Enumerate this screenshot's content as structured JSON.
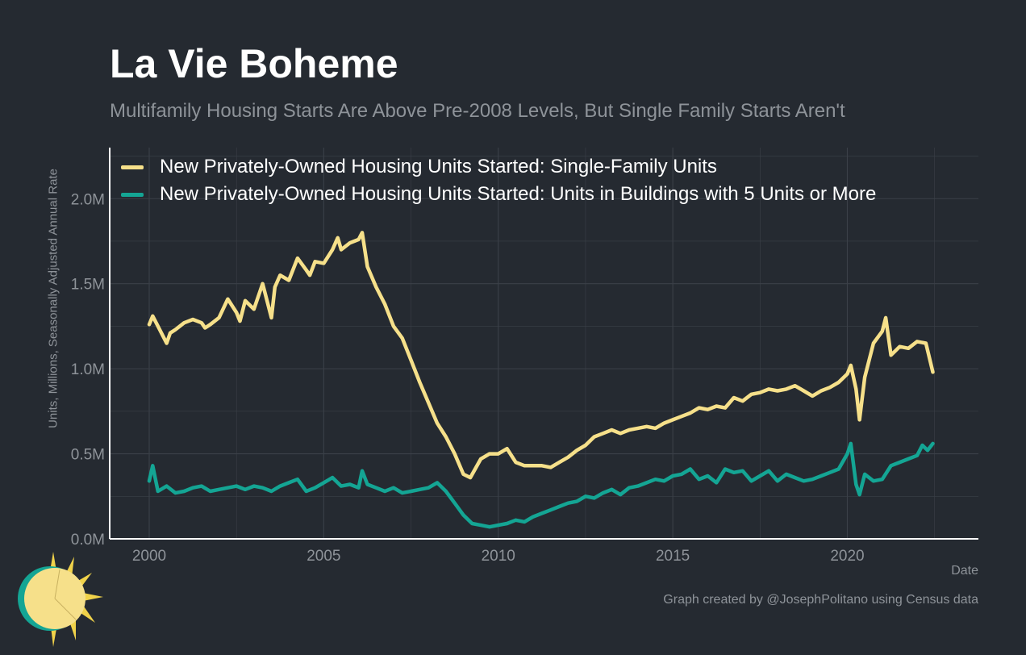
{
  "title": "La Vie Boheme",
  "subtitle": "Multifamily Housing Starts Are Above Pre-2008 Levels, But Single Family Starts Aren't",
  "credit": "Graph created by @JosephPolitano using Census data",
  "logo_icon": "sun-icon",
  "colors": {
    "background": "#252a31",
    "grid": "#3b4048",
    "axis": "#ffffff",
    "tick_text": "#8e9399",
    "single_family": "#f6e08a",
    "multifamily": "#14a594"
  },
  "chart_data": {
    "type": "line",
    "xlabel": "Date",
    "ylabel": "Units, Millions, Seasonally Adjusted Annual Rate",
    "xlim": [
      2000,
      2022.6
    ],
    "ylim": [
      0,
      2.3
    ],
    "x_ticks": [
      2000,
      2005,
      2010,
      2015,
      2020
    ],
    "y_ticks": [
      0,
      0.5,
      1.0,
      1.5,
      2.0
    ],
    "y_tick_labels": [
      "0.0M",
      "0.5M",
      "1.0M",
      "1.5M",
      "2.0M"
    ],
    "grid": true,
    "legend_position": "top-left",
    "series": [
      {
        "name": "New Privately-Owned Housing Units Started: Single-Family Units",
        "color": "#f6e08a",
        "x": [
          2000.0,
          2000.1,
          2000.25,
          2000.5,
          2000.6,
          2000.75,
          2001.0,
          2001.25,
          2001.5,
          2001.6,
          2001.75,
          2002.0,
          2002.25,
          2002.5,
          2002.6,
          2002.75,
          2003.0,
          2003.25,
          2003.5,
          2003.6,
          2003.75,
          2004.0,
          2004.25,
          2004.5,
          2004.6,
          2004.75,
          2005.0,
          2005.25,
          2005.4,
          2005.5,
          2005.75,
          2006.0,
          2006.1,
          2006.25,
          2006.5,
          2006.75,
          2007.0,
          2007.25,
          2007.5,
          2007.75,
          2008.0,
          2008.25,
          2008.5,
          2008.75,
          2009.0,
          2009.2,
          2009.5,
          2009.75,
          2010.0,
          2010.25,
          2010.5,
          2010.75,
          2011.0,
          2011.25,
          2011.5,
          2011.75,
          2012.0,
          2012.25,
          2012.5,
          2012.75,
          2013.0,
          2013.25,
          2013.5,
          2013.75,
          2014.0,
          2014.25,
          2014.5,
          2014.75,
          2015.0,
          2015.25,
          2015.5,
          2015.75,
          2016.0,
          2016.25,
          2016.5,
          2016.75,
          2017.0,
          2017.25,
          2017.5,
          2017.75,
          2018.0,
          2018.25,
          2018.5,
          2018.75,
          2019.0,
          2019.25,
          2019.5,
          2019.75,
          2020.0,
          2020.1,
          2020.25,
          2020.35,
          2020.5,
          2020.75,
          2021.0,
          2021.1,
          2021.25,
          2021.5,
          2021.75,
          2022.0,
          2022.25,
          2022.45
        ],
        "values": [
          1.26,
          1.31,
          1.25,
          1.15,
          1.21,
          1.23,
          1.27,
          1.29,
          1.27,
          1.24,
          1.26,
          1.3,
          1.41,
          1.33,
          1.28,
          1.4,
          1.35,
          1.5,
          1.3,
          1.48,
          1.55,
          1.52,
          1.65,
          1.58,
          1.55,
          1.63,
          1.62,
          1.7,
          1.77,
          1.7,
          1.74,
          1.76,
          1.8,
          1.6,
          1.48,
          1.38,
          1.25,
          1.18,
          1.05,
          0.92,
          0.8,
          0.68,
          0.6,
          0.5,
          0.38,
          0.36,
          0.47,
          0.5,
          0.5,
          0.53,
          0.45,
          0.43,
          0.43,
          0.43,
          0.42,
          0.45,
          0.48,
          0.52,
          0.55,
          0.6,
          0.62,
          0.64,
          0.62,
          0.64,
          0.65,
          0.66,
          0.65,
          0.68,
          0.7,
          0.72,
          0.74,
          0.77,
          0.76,
          0.78,
          0.77,
          0.83,
          0.81,
          0.85,
          0.86,
          0.88,
          0.87,
          0.88,
          0.9,
          0.87,
          0.84,
          0.87,
          0.89,
          0.92,
          0.97,
          1.02,
          0.88,
          0.7,
          0.95,
          1.15,
          1.22,
          1.3,
          1.08,
          1.13,
          1.12,
          1.16,
          1.15,
          0.98
        ]
      },
      {
        "name": "New Privately-Owned Housing Units Started: Units in Buildings with 5 Units or More",
        "color": "#14a594",
        "x": [
          2000.0,
          2000.1,
          2000.25,
          2000.5,
          2000.75,
          2001.0,
          2001.25,
          2001.5,
          2001.75,
          2002.0,
          2002.25,
          2002.5,
          2002.75,
          2003.0,
          2003.25,
          2003.5,
          2003.75,
          2004.0,
          2004.25,
          2004.5,
          2004.75,
          2005.0,
          2005.25,
          2005.5,
          2005.75,
          2006.0,
          2006.1,
          2006.25,
          2006.5,
          2006.75,
          2007.0,
          2007.25,
          2007.5,
          2007.75,
          2008.0,
          2008.25,
          2008.5,
          2008.75,
          2009.0,
          2009.25,
          2009.5,
          2009.75,
          2010.0,
          2010.25,
          2010.5,
          2010.75,
          2011.0,
          2011.25,
          2011.5,
          2011.75,
          2012.0,
          2012.25,
          2012.5,
          2012.75,
          2013.0,
          2013.25,
          2013.5,
          2013.75,
          2014.0,
          2014.25,
          2014.5,
          2014.75,
          2015.0,
          2015.25,
          2015.5,
          2015.75,
          2016.0,
          2016.25,
          2016.5,
          2016.75,
          2017.0,
          2017.25,
          2017.5,
          2017.75,
          2018.0,
          2018.25,
          2018.5,
          2018.75,
          2019.0,
          2019.25,
          2019.5,
          2019.75,
          2020.0,
          2020.1,
          2020.25,
          2020.35,
          2020.5,
          2020.75,
          2021.0,
          2021.25,
          2021.5,
          2021.75,
          2022.0,
          2022.15,
          2022.3,
          2022.45
        ],
        "values": [
          0.34,
          0.43,
          0.28,
          0.31,
          0.27,
          0.28,
          0.3,
          0.31,
          0.28,
          0.29,
          0.3,
          0.31,
          0.29,
          0.31,
          0.3,
          0.28,
          0.31,
          0.33,
          0.35,
          0.28,
          0.3,
          0.33,
          0.36,
          0.31,
          0.32,
          0.3,
          0.4,
          0.32,
          0.3,
          0.28,
          0.3,
          0.27,
          0.28,
          0.29,
          0.3,
          0.33,
          0.28,
          0.21,
          0.14,
          0.09,
          0.08,
          0.07,
          0.08,
          0.09,
          0.11,
          0.1,
          0.13,
          0.15,
          0.17,
          0.19,
          0.21,
          0.22,
          0.25,
          0.24,
          0.27,
          0.29,
          0.26,
          0.3,
          0.31,
          0.33,
          0.35,
          0.34,
          0.37,
          0.38,
          0.41,
          0.35,
          0.37,
          0.33,
          0.41,
          0.39,
          0.4,
          0.34,
          0.37,
          0.4,
          0.34,
          0.38,
          0.36,
          0.34,
          0.35,
          0.37,
          0.39,
          0.41,
          0.5,
          0.56,
          0.32,
          0.26,
          0.38,
          0.34,
          0.35,
          0.43,
          0.45,
          0.47,
          0.49,
          0.55,
          0.52,
          0.56
        ]
      }
    ]
  }
}
